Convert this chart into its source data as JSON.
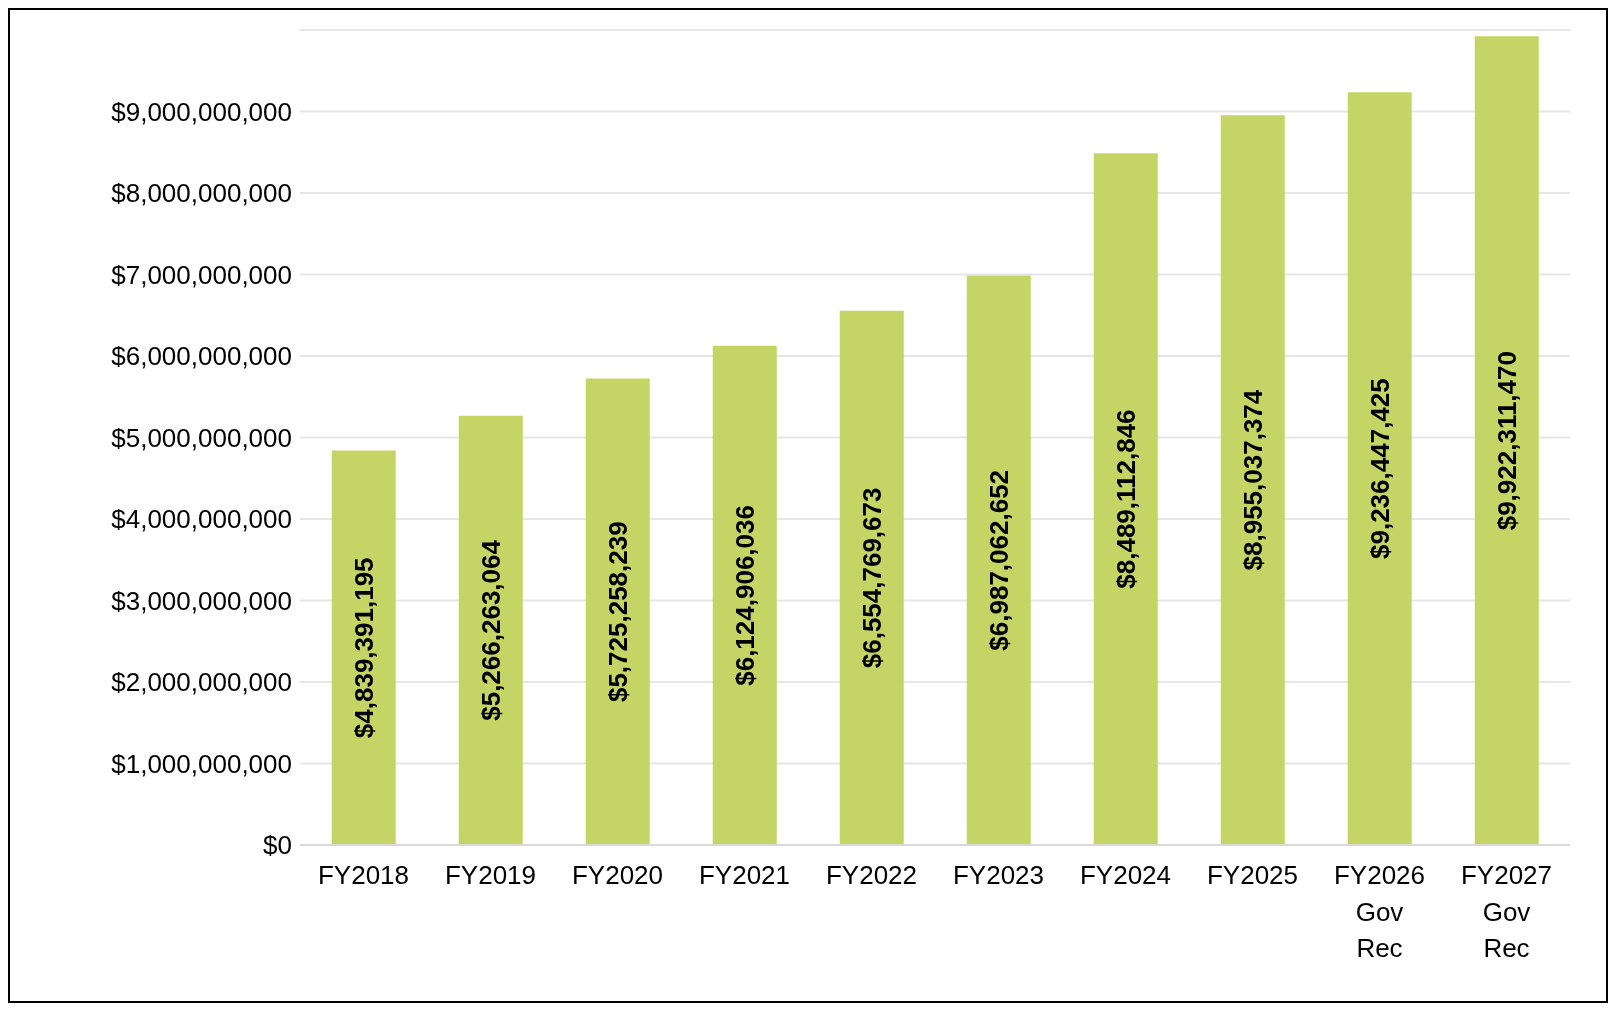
{
  "chart_data": {
    "type": "bar",
    "categories": [
      "FY2018",
      "FY2019",
      "FY2020",
      "FY2021",
      "FY2022",
      "FY2023",
      "FY2024",
      "FY2025",
      "FY2026 Gov Rec",
      "FY2027 Gov Rec"
    ],
    "values": [
      4839391195,
      5266263064,
      5725258239,
      6124906036,
      6554769673,
      6987062652,
      8489112846,
      8955037374,
      9236447425,
      9922311470
    ],
    "value_labels": [
      "$4,839,391,195",
      "$5,266,263,064",
      "$5,725,258,239",
      "$6,124,906,036",
      "$6,554,769,673",
      "$6,987,062,652",
      "$8,489,112,846",
      "$8,955,037,374",
      "$9,236,447,425",
      "$9,922,311,470"
    ],
    "color": "#c5d565",
    "ylim": [
      0,
      10000000000
    ],
    "yticks": [
      {
        "value": 0,
        "label": "$0"
      },
      {
        "value": 1000000000,
        "label": "$1,000,000,000"
      },
      {
        "value": 2000000000,
        "label": "$2,000,000,000"
      },
      {
        "value": 3000000000,
        "label": "$3,000,000,000"
      },
      {
        "value": 4000000000,
        "label": "$4,000,000,000"
      },
      {
        "value": 5000000000,
        "label": "$5,000,000,000"
      },
      {
        "value": 6000000000,
        "label": "$6,000,000,000"
      },
      {
        "value": 7000000000,
        "label": "$7,000,000,000"
      },
      {
        "value": 8000000000,
        "label": "$8,000,000,000"
      },
      {
        "value": 9000000000,
        "label": "$9,000,000,000"
      }
    ],
    "grid": "y"
  }
}
